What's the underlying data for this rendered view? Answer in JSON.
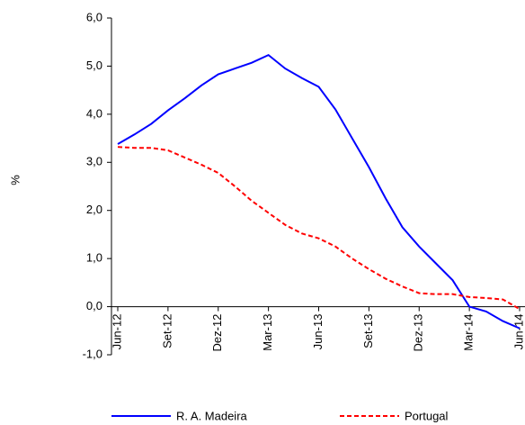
{
  "chart_data": {
    "type": "line",
    "y_label": "%",
    "categories": [
      "Jun-12",
      null,
      null,
      "Set-12",
      null,
      null,
      "Dez-12",
      null,
      null,
      "Mar-13",
      null,
      null,
      "Jun-13",
      null,
      null,
      "Set-13",
      null,
      null,
      "Dez-13",
      null,
      null,
      "Mar-14",
      null,
      null,
      "Jun-14"
    ],
    "series": [
      {
        "name": "R. A. Madeira",
        "color": "#0000ff",
        "dash": "solid",
        "values": [
          3.38,
          3.58,
          3.8,
          4.08,
          4.33,
          4.6,
          4.83,
          4.95,
          5.07,
          5.23,
          4.95,
          4.75,
          4.57,
          4.1,
          3.5,
          2.9,
          2.25,
          1.65,
          1.25,
          0.9,
          0.55,
          0.0,
          -0.1,
          -0.3,
          -0.45
        ]
      },
      {
        "name": "Portugal",
        "color": "#ff0000",
        "dash": "dashed",
        "values": [
          3.32,
          3.3,
          3.3,
          3.25,
          3.1,
          2.95,
          2.78,
          2.5,
          2.2,
          1.95,
          1.7,
          1.52,
          1.42,
          1.25,
          1.0,
          0.78,
          0.58,
          0.42,
          0.28,
          0.26,
          0.26,
          0.2,
          0.18,
          0.15,
          -0.05
        ]
      }
    ],
    "ylim": [
      -1,
      6
    ],
    "yticks": [
      {
        "value": -1,
        "label": "-1,0"
      },
      {
        "value": 0,
        "label": "0,0"
      },
      {
        "value": 1,
        "label": "1,0"
      },
      {
        "value": 2,
        "label": "2,0"
      },
      {
        "value": 3,
        "label": "3,0"
      },
      {
        "value": 4,
        "label": "4,0"
      },
      {
        "value": 5,
        "label": "5,0"
      },
      {
        "value": 6,
        "label": "6,0"
      }
    ],
    "grid": false,
    "legend": "bottom"
  }
}
